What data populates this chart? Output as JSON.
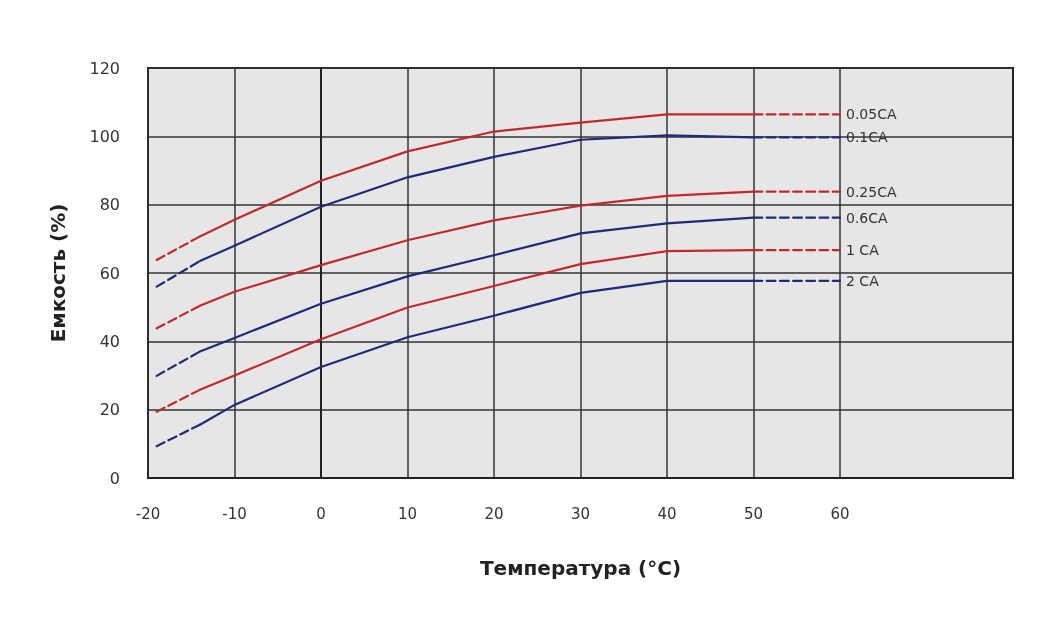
{
  "chart_data": {
    "type": "line",
    "xlabel": "Температура (°C)",
    "ylabel": "Емкость (%)",
    "xlim": [
      -20,
      80
    ],
    "ylim": [
      0,
      120
    ],
    "xticks": [
      -20,
      -10,
      0,
      10,
      20,
      30,
      40,
      50,
      60
    ],
    "yticks": [
      0,
      20,
      40,
      60,
      80,
      100,
      120
    ],
    "grid": true,
    "legend": false,
    "marker": "none",
    "series": [
      {
        "color": "#c22a2a",
        "line_style": "dashed",
        "x": [
          -19,
          -14
        ],
        "values": [
          63.8,
          70.7
        ]
      },
      {
        "color": "#c22a2a",
        "line_style": "solid",
        "x": [
          -14,
          -10,
          0,
          10,
          20,
          30,
          40,
          50
        ],
        "values": [
          70.7,
          75.6,
          87,
          95.6,
          101.4,
          104,
          106.4,
          106.4
        ]
      },
      {
        "name": "0.05CA",
        "color": "#c22a2a",
        "line_style": "dashed",
        "x": [
          50,
          60
        ],
        "values": [
          106.4,
          106.4
        ]
      },
      {
        "color": "#1f2a7a",
        "line_style": "dashed",
        "x": [
          -19,
          -14
        ],
        "values": [
          56,
          63.5
        ]
      },
      {
        "color": "#1f2a7a",
        "line_style": "solid",
        "x": [
          -14,
          -10,
          0,
          10,
          20,
          30,
          40,
          50
        ],
        "values": [
          63.5,
          68,
          79.4,
          88,
          94,
          99,
          100.3,
          99.7
        ]
      },
      {
        "name": "0.1CA",
        "color": "#1f2a7a",
        "line_style": "dashed",
        "x": [
          50,
          60
        ],
        "values": [
          99.7,
          99.7
        ]
      },
      {
        "color": "#c22a2a",
        "line_style": "dashed",
        "x": [
          -19,
          -14
        ],
        "values": [
          43.8,
          50.4
        ]
      },
      {
        "color": "#c22a2a",
        "line_style": "solid",
        "x": [
          -14,
          -10,
          0,
          10,
          20,
          30,
          40,
          50
        ],
        "values": [
          50.4,
          54.5,
          62.3,
          69.6,
          75.4,
          79.7,
          82.6,
          83.8
        ]
      },
      {
        "name": "0.25CA",
        "color": "#c22a2a",
        "line_style": "dashed",
        "x": [
          50,
          60
        ],
        "values": [
          83.8,
          83.8
        ]
      },
      {
        "color": "#1f2a7a",
        "line_style": "dashed",
        "x": [
          -19,
          -14
        ],
        "values": [
          29.9,
          37
        ]
      },
      {
        "color": "#1f2a7a",
        "line_style": "solid",
        "x": [
          -14,
          -10,
          0,
          10,
          20,
          30,
          40,
          50
        ],
        "values": [
          37,
          41,
          51,
          59,
          65.2,
          71.6,
          74.5,
          76.2
        ]
      },
      {
        "name": "0.6CA",
        "color": "#1f2a7a",
        "line_style": "dashed",
        "x": [
          50,
          60
        ],
        "values": [
          76.2,
          76.2
        ]
      },
      {
        "color": "#c22a2a",
        "line_style": "dashed",
        "x": [
          -19,
          -14
        ],
        "values": [
          19.4,
          25.8
        ]
      },
      {
        "color": "#c22a2a",
        "line_style": "solid",
        "x": [
          -14,
          -10,
          0,
          10,
          20,
          30,
          40,
          50
        ],
        "values": [
          25.8,
          30,
          40.6,
          49.9,
          56.2,
          62.6,
          66.4,
          66.7
        ]
      },
      {
        "name": "1 CA",
        "color": "#c22a2a",
        "line_style": "dashed",
        "x": [
          50,
          60
        ],
        "values": [
          66.7,
          66.7
        ]
      },
      {
        "color": "#1f2a7a",
        "line_style": "dashed",
        "x": [
          -19,
          -14
        ],
        "values": [
          9.3,
          15.6
        ]
      },
      {
        "color": "#1f2a7a",
        "line_style": "solid",
        "x": [
          -14,
          -10,
          0,
          10,
          20,
          30,
          40,
          50
        ],
        "values": [
          15.6,
          21.4,
          32.5,
          41.2,
          47.5,
          54.2,
          57.7,
          57.7
        ]
      },
      {
        "name": "2 CA",
        "color": "#1f2a7a",
        "line_style": "dashed",
        "x": [
          50,
          60
        ],
        "values": [
          57.7,
          57.7
        ]
      }
    ]
  }
}
